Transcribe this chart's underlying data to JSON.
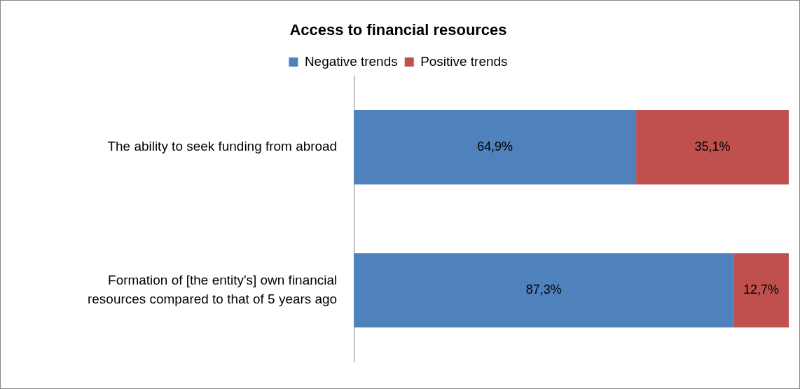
{
  "chart_data": {
    "type": "bar",
    "orientation": "horizontal",
    "stacked": true,
    "title": "Access to financial resources",
    "categories": [
      "The ability to seek funding from abroad",
      "Formation of [the entity's] own financial resources compared to that of 5 years ago"
    ],
    "series": [
      {
        "name": "Negative trends",
        "color": "#4f81bd",
        "values": [
          64.9,
          87.3
        ],
        "value_labels": [
          "64,9%",
          "87,3%"
        ]
      },
      {
        "name": "Positive trends",
        "color": "#c0504d",
        "values": [
          35.1,
          12.7
        ],
        "value_labels": [
          "35,1%",
          "12,7%"
        ]
      }
    ],
    "xlim": [
      0,
      100
    ],
    "tick_labels": "y",
    "legend": "top",
    "grid": false
  }
}
